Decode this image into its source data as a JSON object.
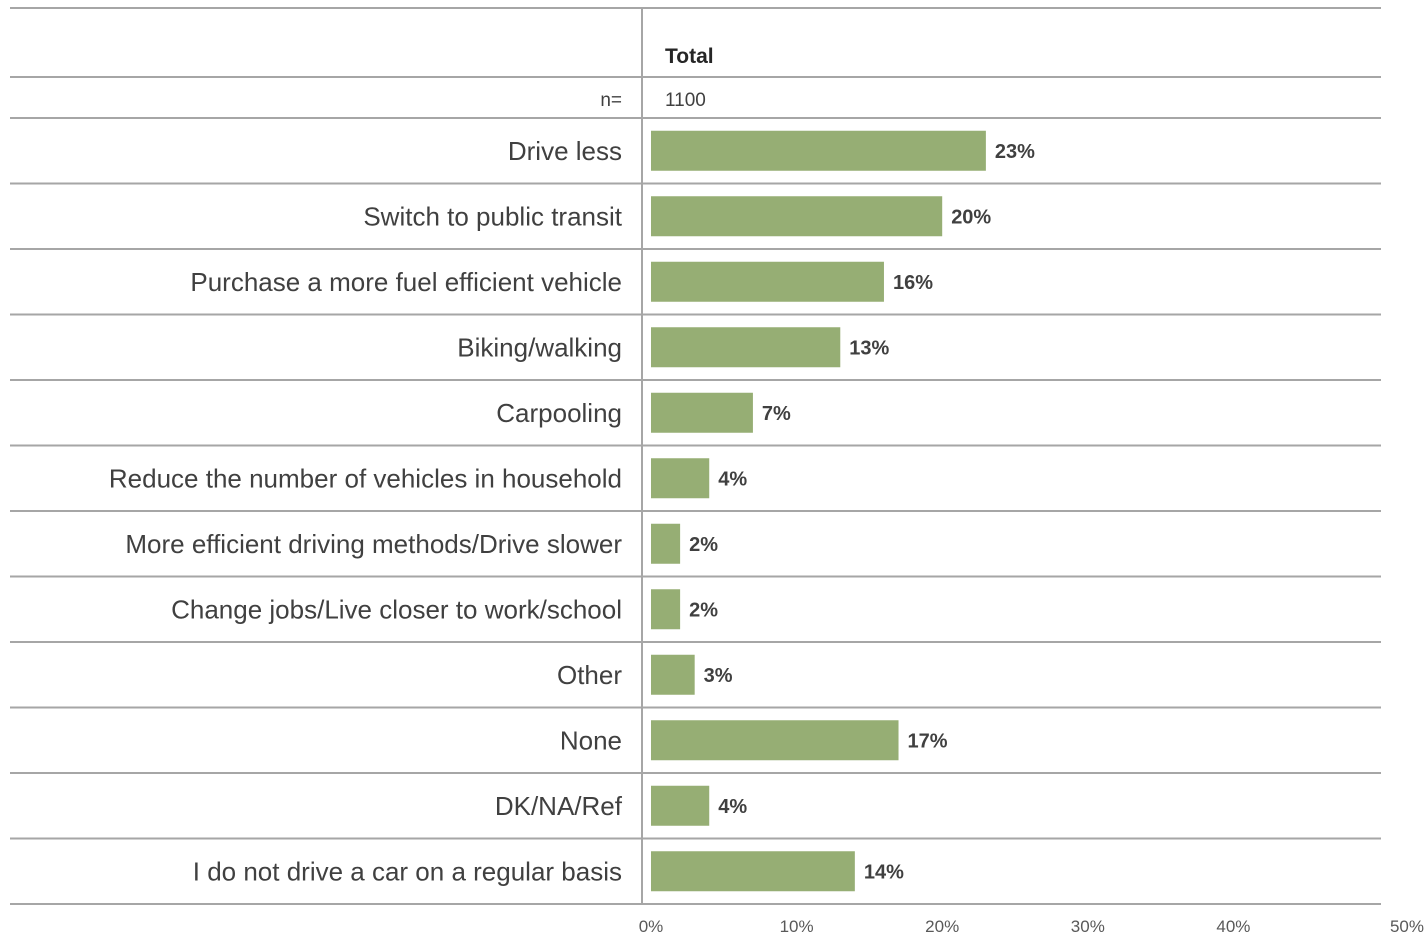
{
  "chart_data": {
    "type": "bar",
    "orientation": "horizontal",
    "column_header": "Total",
    "n_label": "n=",
    "n_value": "1100",
    "categories": [
      "Drive less",
      "Switch to public transit",
      "Purchase a more fuel efficient vehicle",
      "Biking/walking",
      "Carpooling",
      "Reduce the number of vehicles in household",
      "More efficient driving methods/Drive slower",
      "Change jobs/Live closer to work/school",
      "Other",
      "None",
      "DK/NA/Ref",
      "I do not drive a car on a regular basis"
    ],
    "values": [
      23,
      20,
      16,
      13,
      7,
      4,
      2,
      2,
      3,
      17,
      4,
      14
    ],
    "value_labels": [
      "23%",
      "20%",
      "16%",
      "13%",
      "7%",
      "4%",
      "2%",
      "2%",
      "3%",
      "17%",
      "4%",
      "14%"
    ],
    "xlim": [
      0,
      50
    ],
    "xticks": [
      "0%",
      "10%",
      "20%",
      "30%",
      "40%",
      "50%"
    ],
    "grid": false,
    "legend": "none",
    "colors": {
      "bar": "#96ae74",
      "separator": "#a6a6a6",
      "text": "#404040"
    }
  }
}
